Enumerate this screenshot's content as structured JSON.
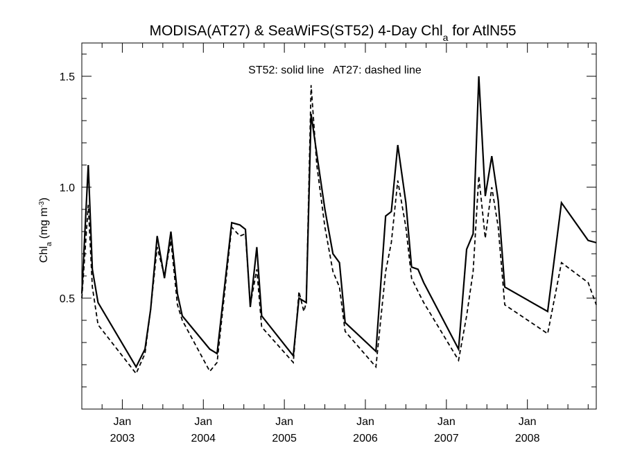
{
  "chart_data": {
    "type": "line",
    "title": {
      "prefix": "MODISA(AT27) & SeaWiFS(ST52) 4-Day Chl",
      "sub": "a",
      "suffix": " for AtlN55"
    },
    "ylabel": {
      "prefix": "Chl",
      "sub": "a",
      "unit": " (mg m",
      "sup": "-3",
      "close": ")"
    },
    "annotation": "ST52: solid line   AT27: dashed line",
    "x_tick_labels": [
      {
        "month": "Jan",
        "year": "2003",
        "x": 2003.0
      },
      {
        "month": "Jan",
        "year": "2004",
        "x": 2004.0
      },
      {
        "month": "Jan",
        "year": "2005",
        "x": 2005.0
      },
      {
        "month": "Jan",
        "year": "2006",
        "x": 2006.0
      },
      {
        "month": "Jan",
        "year": "2007",
        "x": 2007.0
      },
      {
        "month": "Jan",
        "year": "2008",
        "x": 2008.0
      }
    ],
    "y_ticks": [
      0.5,
      1.0,
      1.5
    ],
    "y_tick_labels": [
      "0.5",
      "1.0",
      "1.5"
    ],
    "xlim": [
      2002.5,
      2008.85
    ],
    "ylim": [
      0.0,
      1.65
    ],
    "grid": false,
    "series": [
      {
        "style": "solid",
        "points": [
          [
            2002.5,
            0.52
          ],
          [
            2002.58,
            1.1
          ],
          [
            2002.63,
            0.63
          ],
          [
            2002.7,
            0.48
          ],
          [
            2003.17,
            0.19
          ],
          [
            2003.28,
            0.27
          ],
          [
            2003.35,
            0.45
          ],
          [
            2003.43,
            0.78
          ],
          [
            2003.52,
            0.59
          ],
          [
            2003.6,
            0.8
          ],
          [
            2003.68,
            0.52
          ],
          [
            2003.74,
            0.42
          ],
          [
            2004.08,
            0.27
          ],
          [
            2004.17,
            0.25
          ],
          [
            2004.35,
            0.84
          ],
          [
            2004.45,
            0.83
          ],
          [
            2004.52,
            0.81
          ],
          [
            2004.58,
            0.46
          ],
          [
            2004.66,
            0.73
          ],
          [
            2004.72,
            0.42
          ],
          [
            2005.11,
            0.24
          ],
          [
            2005.18,
            0.5
          ],
          [
            2005.27,
            0.48
          ],
          [
            2005.33,
            1.33
          ],
          [
            2005.4,
            1.15
          ],
          [
            2005.5,
            0.9
          ],
          [
            2005.6,
            0.7
          ],
          [
            2005.68,
            0.66
          ],
          [
            2005.75,
            0.39
          ],
          [
            2006.13,
            0.26
          ],
          [
            2006.25,
            0.87
          ],
          [
            2006.32,
            0.89
          ],
          [
            2006.4,
            1.19
          ],
          [
            2006.5,
            0.93
          ],
          [
            2006.57,
            0.64
          ],
          [
            2006.65,
            0.63
          ],
          [
            2006.72,
            0.57
          ],
          [
            2007.15,
            0.27
          ],
          [
            2007.25,
            0.72
          ],
          [
            2007.33,
            0.79
          ],
          [
            2007.4,
            1.5
          ],
          [
            2007.48,
            0.96
          ],
          [
            2007.56,
            1.14
          ],
          [
            2007.64,
            0.94
          ],
          [
            2007.72,
            0.55
          ],
          [
            2008.25,
            0.44
          ],
          [
            2008.42,
            0.93
          ],
          [
            2008.75,
            0.76
          ],
          [
            2008.85,
            0.75
          ]
        ]
      },
      {
        "style": "dashed",
        "points": [
          [
            2002.5,
            0.5
          ],
          [
            2002.58,
            0.92
          ],
          [
            2002.63,
            0.55
          ],
          [
            2002.7,
            0.38
          ],
          [
            2003.17,
            0.16
          ],
          [
            2003.28,
            0.25
          ],
          [
            2003.35,
            0.45
          ],
          [
            2003.43,
            0.73
          ],
          [
            2003.52,
            0.6
          ],
          [
            2003.6,
            0.76
          ],
          [
            2003.68,
            0.47
          ],
          [
            2003.74,
            0.4
          ],
          [
            2004.08,
            0.17
          ],
          [
            2004.17,
            0.21
          ],
          [
            2004.35,
            0.82
          ],
          [
            2004.45,
            0.78
          ],
          [
            2004.52,
            0.79
          ],
          [
            2004.58,
            0.47
          ],
          [
            2004.66,
            0.63
          ],
          [
            2004.72,
            0.37
          ],
          [
            2005.11,
            0.21
          ],
          [
            2005.18,
            0.53
          ],
          [
            2005.24,
            0.44
          ],
          [
            2005.27,
            0.48
          ],
          [
            2005.33,
            1.46
          ],
          [
            2005.4,
            1.1
          ],
          [
            2005.5,
            0.82
          ],
          [
            2005.6,
            0.62
          ],
          [
            2005.68,
            0.55
          ],
          [
            2005.75,
            0.35
          ],
          [
            2006.13,
            0.19
          ],
          [
            2006.25,
            0.62
          ],
          [
            2006.32,
            0.75
          ],
          [
            2006.4,
            1.03
          ],
          [
            2006.5,
            0.82
          ],
          [
            2006.57,
            0.59
          ],
          [
            2006.65,
            0.53
          ],
          [
            2006.72,
            0.48
          ],
          [
            2007.15,
            0.22
          ],
          [
            2007.25,
            0.42
          ],
          [
            2007.33,
            0.62
          ],
          [
            2007.4,
            1.05
          ],
          [
            2007.48,
            0.77
          ],
          [
            2007.56,
            1.0
          ],
          [
            2007.64,
            0.82
          ],
          [
            2007.72,
            0.47
          ],
          [
            2008.25,
            0.34
          ],
          [
            2008.42,
            0.66
          ],
          [
            2008.75,
            0.57
          ],
          [
            2008.85,
            0.47
          ]
        ]
      }
    ]
  }
}
